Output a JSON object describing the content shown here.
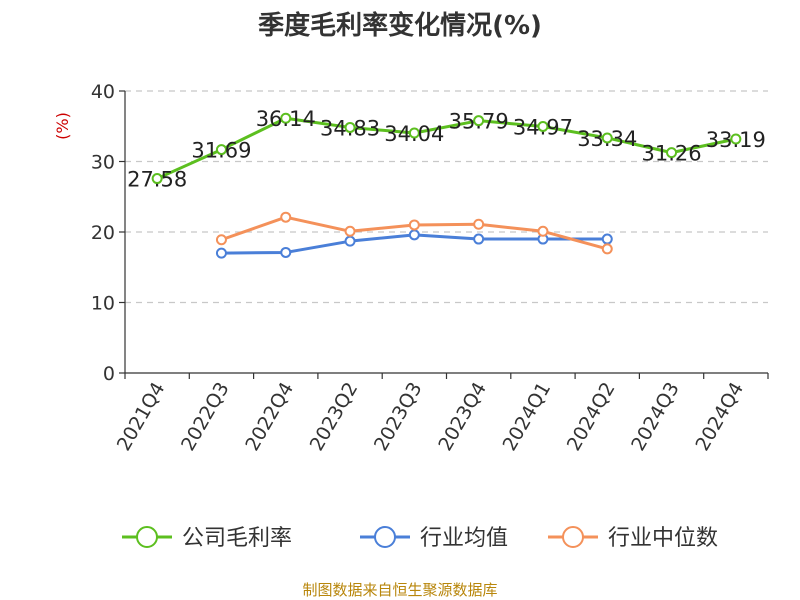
{
  "chart_data": {
    "type": "line",
    "title": "季度毛利率变化情况(%)",
    "ylabel": "(%)",
    "ylim": [
      0,
      40
    ],
    "yticks": [
      0,
      10,
      20,
      30,
      40
    ],
    "grid": true,
    "legend_position": "bottom",
    "categories": [
      "2021Q4",
      "2022Q3",
      "2022Q4",
      "2023Q2",
      "2023Q3",
      "2023Q4",
      "2024Q1",
      "2024Q2",
      "2024Q3",
      "2024Q4"
    ],
    "series": [
      {
        "name": "公司毛利率",
        "color": "#5cbf1f",
        "values": [
          27.58,
          31.69,
          36.14,
          34.83,
          34.04,
          35.79,
          34.97,
          33.34,
          31.26,
          33.19
        ],
        "labels": [
          "27.58",
          "31.69",
          "36.14",
          "34.83",
          "34.04",
          "35.79",
          "34.97",
          "33.34",
          "31.26",
          "33.19"
        ]
      },
      {
        "name": "行业均值",
        "color": "#4a7fd8",
        "values": [
          null,
          17.0,
          17.1,
          18.7,
          19.6,
          19.0,
          19.0,
          19.0,
          null,
          null
        ]
      },
      {
        "name": "行业中位数",
        "color": "#f4915a",
        "values": [
          null,
          18.9,
          22.1,
          20.1,
          21.0,
          21.1,
          20.1,
          17.6,
          null,
          null
        ]
      }
    ]
  },
  "source": "制图数据来自恒生聚源数据库"
}
